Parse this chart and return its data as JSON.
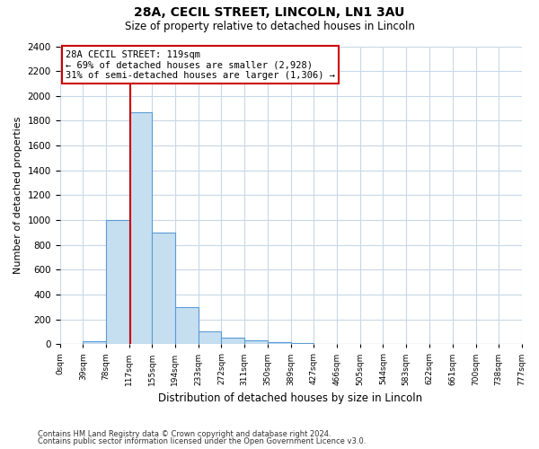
{
  "title1": "28A, CECIL STREET, LINCOLN, LN1 3AU",
  "title2": "Size of property relative to detached houses in Lincoln",
  "xlabel": "Distribution of detached houses by size in Lincoln",
  "ylabel": "Number of detached properties",
  "bin_edges": [
    0,
    39,
    78,
    117,
    155,
    194,
    233,
    272,
    311,
    350,
    389,
    427,
    466,
    505,
    544,
    583,
    622,
    661,
    700,
    738,
    777
  ],
  "bar_heights": [
    0,
    22,
    1000,
    1870,
    900,
    300,
    105,
    50,
    30,
    15,
    8,
    5,
    3,
    2,
    2,
    1,
    1,
    1,
    1,
    1
  ],
  "bar_color": "#c6dff0",
  "bar_edgecolor": "#5b9bd5",
  "property_size": 119,
  "vline_color": "#cc0000",
  "ylim": [
    0,
    2400
  ],
  "yticks": [
    0,
    200,
    400,
    600,
    800,
    1000,
    1200,
    1400,
    1600,
    1800,
    2000,
    2200,
    2400
  ],
  "annotation_text": "28A CECIL STREET: 119sqm\n← 69% of detached houses are smaller (2,928)\n31% of semi-detached houses are larger (1,306) →",
  "annotation_box_color": "#ffffff",
  "annotation_box_edgecolor": "#cc0000",
  "footnote1": "Contains HM Land Registry data © Crown copyright and database right 2024.",
  "footnote2": "Contains public sector information licensed under the Open Government Licence v3.0.",
  "bg_color": "#ffffff",
  "grid_color": "#c8d8e8",
  "tick_labels": [
    "0sqm",
    "39sqm",
    "78sqm",
    "117sqm",
    "155sqm",
    "194sqm",
    "233sqm",
    "272sqm",
    "311sqm",
    "350sqm",
    "389sqm",
    "427sqm",
    "466sqm",
    "505sqm",
    "544sqm",
    "583sqm",
    "622sqm",
    "661sqm",
    "700sqm",
    "738sqm",
    "777sqm"
  ]
}
